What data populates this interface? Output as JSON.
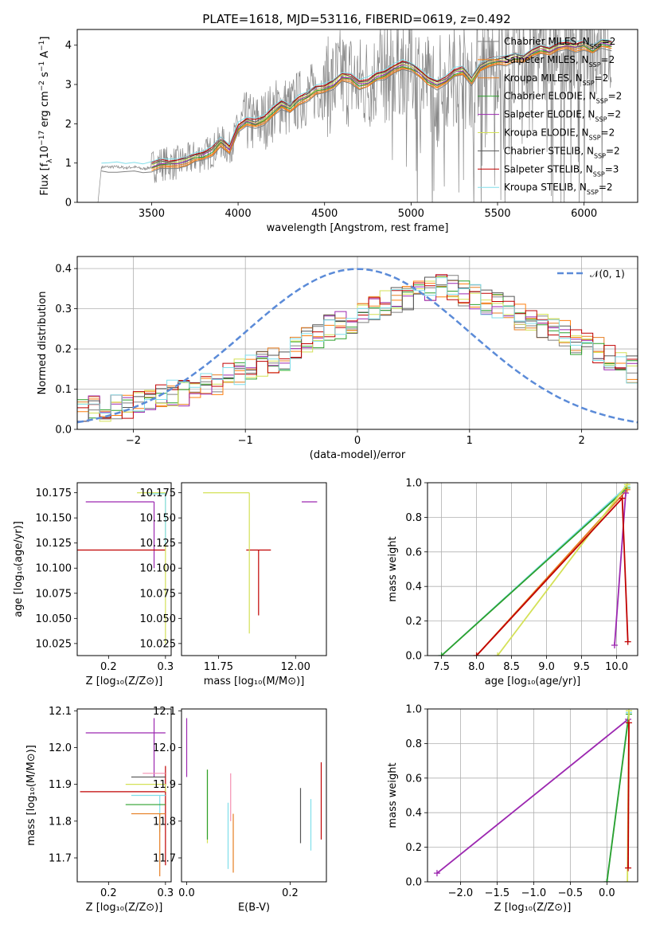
{
  "figure": {
    "title": "PLATE=1618, MJD=53116, FIBERID=0619, z=0.492"
  },
  "colors": {
    "chabrier_miles": "#808080",
    "salpeter_miles": "#ff7f0e",
    "kroupa_miles": "#e67e22",
    "chabrier_elodie": "#2ca02c",
    "salpeter_elodie": "#9c27b0",
    "kroupa_elodie": "#d4e157",
    "chabrier_stelib": "#555555",
    "salpeter_stelib": "#c00000",
    "kroupa_stelib": "#80deea",
    "normal": "#5b8bd8",
    "pink": "#f48fb1"
  },
  "chart_data": [
    {
      "id": "spectrum",
      "type": "line",
      "xlabel": "wavelength [Angstrom, rest frame]",
      "ylabel_parts": [
        "Flux [f",
        "λ",
        "10",
        "−17",
        " erg cm",
        "−2",
        " s",
        "−1",
        " A",
        "−1",
        "]"
      ],
      "xlim": [
        3070,
        6310
      ],
      "ylim": [
        0,
        4.4
      ],
      "xticks": [
        3500,
        4000,
        4500,
        5000,
        5500,
        6000
      ],
      "yticks": [
        0,
        1,
        2,
        3,
        4
      ],
      "grid": false,
      "legend_position": "right",
      "legend": [
        {
          "name": "Chabrier MILES",
          "nssp": "2",
          "color": "#808080"
        },
        {
          "name": "Salpeter MILES",
          "nssp": "2",
          "color": "#ff7f0e"
        },
        {
          "name": "Kroupa MILES",
          "nssp": "2",
          "color": "#e67e22"
        },
        {
          "name": "Chabrier ELODIE",
          "nssp": "2",
          "color": "#2ca02c"
        },
        {
          "name": "Salpeter ELODIE",
          "nssp": "2",
          "color": "#9c27b0"
        },
        {
          "name": "Kroupa ELODIE",
          "nssp": "2",
          "color": "#d4e157"
        },
        {
          "name": "Chabrier STELIB",
          "nssp": "2",
          "color": "#555555"
        },
        {
          "name": "Salpeter STELIB",
          "nssp": "3",
          "color": "#c00000"
        },
        {
          "name": "Kroupa STELIB",
          "nssp": "2",
          "color": "#80deea"
        }
      ],
      "model_envelope": {
        "x": [
          3210,
          3250,
          3300,
          3350,
          3400,
          3450,
          3500,
          3550,
          3600,
          3650,
          3700,
          3750,
          3800,
          3850,
          3900,
          3950,
          4000,
          4050,
          4100,
          4150,
          4200,
          4250,
          4300,
          4350,
          4400,
          4450,
          4500,
          4550,
          4600,
          4650,
          4700,
          4750,
          4800,
          4850,
          4900,
          4950,
          5000,
          5050,
          5100,
          5150,
          5200,
          5250,
          5300,
          5350,
          5400,
          5450,
          5500,
          5550,
          5600,
          5650,
          5700,
          5750,
          5800,
          5850,
          5900,
          5950,
          6000,
          6050,
          6100,
          6160
        ],
        "y": [
          0.9,
          0.9,
          0.9,
          0.88,
          0.9,
          0.85,
          0.9,
          1.0,
          0.98,
          1.0,
          1.05,
          1.15,
          1.2,
          1.3,
          1.55,
          1.35,
          1.9,
          2.05,
          2.0,
          2.1,
          2.3,
          2.5,
          2.4,
          2.6,
          2.7,
          2.85,
          2.9,
          3.0,
          3.2,
          3.15,
          3.0,
          3.05,
          3.2,
          3.25,
          3.4,
          3.5,
          3.45,
          3.3,
          3.1,
          3.0,
          3.1,
          3.3,
          3.35,
          3.1,
          3.45,
          3.55,
          3.6,
          3.6,
          3.7,
          3.65,
          3.8,
          3.9,
          3.85,
          3.95,
          4.0,
          3.95,
          4.0,
          3.9,
          4.05,
          4.0
        ]
      }
    },
    {
      "id": "residuals",
      "type": "histogram",
      "xlabel": "(data-model)/error",
      "ylabel": "Normed distribution",
      "xlim": [
        -2.5,
        2.5
      ],
      "ylim": [
        0,
        0.43
      ],
      "xticks": [
        -2,
        -1,
        0,
        1,
        2
      ],
      "yticks": [
        0.0,
        0.1,
        0.2,
        0.3,
        0.4
      ],
      "grid": true,
      "legend_label": "𝒩(0, 1)",
      "bin_edges_step": 0.1,
      "hist_mean": [
        0.04,
        0.05,
        0.05,
        0.06,
        0.06,
        0.07,
        0.07,
        0.08,
        0.09,
        0.09,
        0.1,
        0.11,
        0.12,
        0.13,
        0.14,
        0.15,
        0.16,
        0.17,
        0.18,
        0.2,
        0.22,
        0.23,
        0.25,
        0.26,
        0.27,
        0.29,
        0.3,
        0.31,
        0.32,
        0.33,
        0.34,
        0.35,
        0.35,
        0.35,
        0.34,
        0.33,
        0.32,
        0.31,
        0.3,
        0.28,
        0.27,
        0.26,
        0.25,
        0.24,
        0.22,
        0.21,
        0.2,
        0.18,
        0.17,
        0.15,
        0.14
      ]
    },
    {
      "id": "z_vs_age",
      "type": "errorbar",
      "xlabel": "Z [log₁₀(Z/Z⊙)]",
      "ylabel": "age  [log₁₀(age/yr)]",
      "xlim": [
        0.145,
        0.31
      ],
      "ylim": [
        10.013,
        10.185
      ],
      "xticks": [
        0.2,
        0.3
      ],
      "yticks": [
        10.025,
        10.05,
        10.075,
        10.1,
        10.125,
        10.15,
        10.175
      ],
      "points": [
        {
          "x": 0.28,
          "y": 10.166,
          "color": "#9c27b0"
        },
        {
          "x": 0.3,
          "y": 10.118,
          "color": "#c00000"
        },
        {
          "x": 0.3,
          "y": 10.175,
          "color": "#d4e157"
        },
        {
          "x": 0.3,
          "y": 10.174,
          "color": "#80deea"
        }
      ]
    },
    {
      "id": "mass_vs_age",
      "type": "errorbar",
      "xlabel": "mass [log₁₀(M/M⊙)]",
      "ylabel": "",
      "xlim": [
        11.63,
        12.1
      ],
      "ylim": [
        10.013,
        10.185
      ],
      "xticks": [
        11.75,
        12.0
      ],
      "yticks": [
        10.025,
        10.05,
        10.075,
        10.1,
        10.125,
        10.15,
        10.175
      ],
      "points": [
        {
          "x": 11.88,
          "y": 10.118,
          "color": "#c00000"
        },
        {
          "x": 12.04,
          "y": 10.166,
          "color": "#9c27b0"
        },
        {
          "x": 11.85,
          "y": 10.175,
          "color": "#d4e157"
        }
      ]
    },
    {
      "id": "age_weights",
      "type": "line",
      "xlabel": "age  [log₁₀(age/yr)]",
      "ylabel": "mass weight",
      "xlim": [
        7.3,
        10.3
      ],
      "ylim": [
        0,
        1
      ],
      "xticks": [
        7.5,
        8.0,
        8.5,
        9.0,
        9.5,
        10.0
      ],
      "yticks": [
        0.0,
        0.2,
        0.4,
        0.6,
        0.8,
        1.0
      ],
      "grid": true,
      "series": [
        {
          "x": [
            7.5,
            10.15
          ],
          "y": [
            0.0,
            0.98
          ],
          "color": "#80deea"
        },
        {
          "x": [
            7.5,
            10.15
          ],
          "y": [
            0.0,
            0.97
          ],
          "color": "#2ca02c"
        },
        {
          "x": [
            8.0,
            10.15
          ],
          "y": [
            0.0,
            0.96
          ],
          "color": "#e67e22"
        },
        {
          "x": [
            8.3,
            10.15
          ],
          "y": [
            0.0,
            0.99
          ],
          "color": "#d4e157"
        },
        {
          "x": [
            8.0,
            10.08
          ],
          "y": [
            0.0,
            0.91
          ],
          "color": "#c00000"
        },
        {
          "x": [
            9.97,
            10.13
          ],
          "y": [
            0.06,
            0.94
          ],
          "color": "#9c27b0"
        },
        {
          "x": [
            10.08,
            10.16
          ],
          "y": [
            0.91,
            0.08
          ],
          "color": "#c00000"
        }
      ]
    },
    {
      "id": "z_vs_mass",
      "type": "errorbar",
      "xlabel": "Z [log₁₀(Z/Z⊙)]",
      "ylabel": "mass [log₁₀(M/M⊙)]",
      "xlim": [
        0.145,
        0.31
      ],
      "ylim": [
        11.635,
        12.105
      ],
      "xticks": [
        0.2,
        0.3
      ],
      "yticks": [
        11.7,
        11.8,
        11.9,
        12.0,
        12.1
      ],
      "points": [
        {
          "x": 0.28,
          "y": 12.04,
          "color": "#9c27b0"
        },
        {
          "x": 0.3,
          "y": 11.88,
          "color": "#c00000"
        },
        {
          "x": 0.29,
          "y": 11.93,
          "color": "#f48fb1"
        },
        {
          "x": 0.29,
          "y": 11.92,
          "color": "#555555"
        },
        {
          "x": 0.3,
          "y": 11.9,
          "color": "#d4e157"
        },
        {
          "x": 0.29,
          "y": 11.87,
          "color": "#80deea"
        },
        {
          "x": 0.29,
          "y": 11.845,
          "color": "#2ca02c"
        },
        {
          "x": 0.29,
          "y": 11.82,
          "color": "#e67e22"
        }
      ]
    },
    {
      "id": "ebv_vs_mass",
      "type": "errorbar",
      "xlabel": "E(B-V)",
      "ylabel": "",
      "xlim": [
        -0.01,
        0.27
      ],
      "ylim": [
        11.635,
        12.105
      ],
      "xticks": [
        0.0,
        0.2
      ],
      "yticks": [
        11.7,
        11.8,
        11.9,
        12.0,
        12.1
      ],
      "points": [
        {
          "x": 0.0,
          "y": 12.0,
          "color": "#9c27b0"
        },
        {
          "x": 0.04,
          "y": 11.84,
          "color": "#d4e157"
        },
        {
          "x": 0.04,
          "y": 11.84,
          "color": "#2ca02c"
        },
        {
          "x": 0.085,
          "y": 11.86,
          "color": "#f48fb1"
        },
        {
          "x": 0.08,
          "y": 11.76,
          "color": "#80deea"
        },
        {
          "x": 0.09,
          "y": 11.74,
          "color": "#e67e22"
        },
        {
          "x": 0.22,
          "y": 11.81,
          "color": "#555555"
        },
        {
          "x": 0.24,
          "y": 11.79,
          "color": "#80deea"
        },
        {
          "x": 0.26,
          "y": 11.86,
          "color": "#c00000"
        }
      ]
    },
    {
      "id": "z_weights",
      "type": "line",
      "xlabel": "Z [log₁₀(Z/Z⊙)]",
      "ylabel": "mass weight",
      "xlim": [
        -2.45,
        0.42
      ],
      "ylim": [
        0,
        1
      ],
      "xticks": [
        -2.0,
        -1.5,
        -1.0,
        -0.5,
        0.0
      ],
      "yticks": [
        0.0,
        0.2,
        0.4,
        0.6,
        0.8,
        1.0
      ],
      "grid": true,
      "series": [
        {
          "x": [
            -2.32,
            0.29
          ],
          "y": [
            0.05,
            0.94
          ],
          "color": "#9c27b0"
        },
        {
          "x": [
            0.0,
            0.3
          ],
          "y": [
            0.0,
            0.98
          ],
          "color": "#80deea"
        },
        {
          "x": [
            0.0,
            0.3
          ],
          "y": [
            0.0,
            0.97
          ],
          "color": "#2ca02c"
        },
        {
          "x": [
            0.28,
            0.3
          ],
          "y": [
            0.0,
            0.99
          ],
          "color": "#d4e157"
        },
        {
          "x": [
            0.29,
            0.3
          ],
          "y": [
            0.08,
            0.92
          ],
          "color": "#c00000"
        }
      ]
    }
  ]
}
